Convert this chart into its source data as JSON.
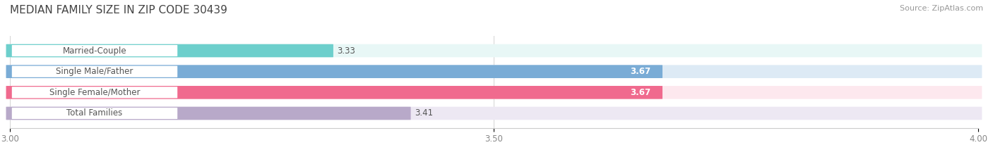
{
  "title": "MEDIAN FAMILY SIZE IN ZIP CODE 30439",
  "source": "Source: ZipAtlas.com",
  "categories": [
    "Married-Couple",
    "Single Male/Father",
    "Single Female/Mother",
    "Total Families"
  ],
  "values": [
    3.33,
    3.67,
    3.67,
    3.41
  ],
  "bar_colors": [
    "#6dcfcc",
    "#7aacd6",
    "#f06a8e",
    "#b8a9c9"
  ],
  "bar_bg_colors": [
    "#e8f7f6",
    "#ddeaf5",
    "#fde8ee",
    "#ede8f3"
  ],
  "value_in_bar": [
    false,
    true,
    true,
    false
  ],
  "xlim": [
    3.0,
    4.0
  ],
  "xticks": [
    3.0,
    3.5,
    4.0
  ],
  "xtick_labels": [
    "3.00",
    "3.50",
    "4.00"
  ],
  "bar_height": 0.62,
  "label_fontsize": 8.5,
  "value_fontsize": 8.5,
  "title_fontsize": 11,
  "source_fontsize": 8,
  "background_color": "#ffffff",
  "label_box_color": "#ffffff",
  "label_text_color": "#555555",
  "value_outside_color": "#555555",
  "value_inside_color": "#ffffff"
}
